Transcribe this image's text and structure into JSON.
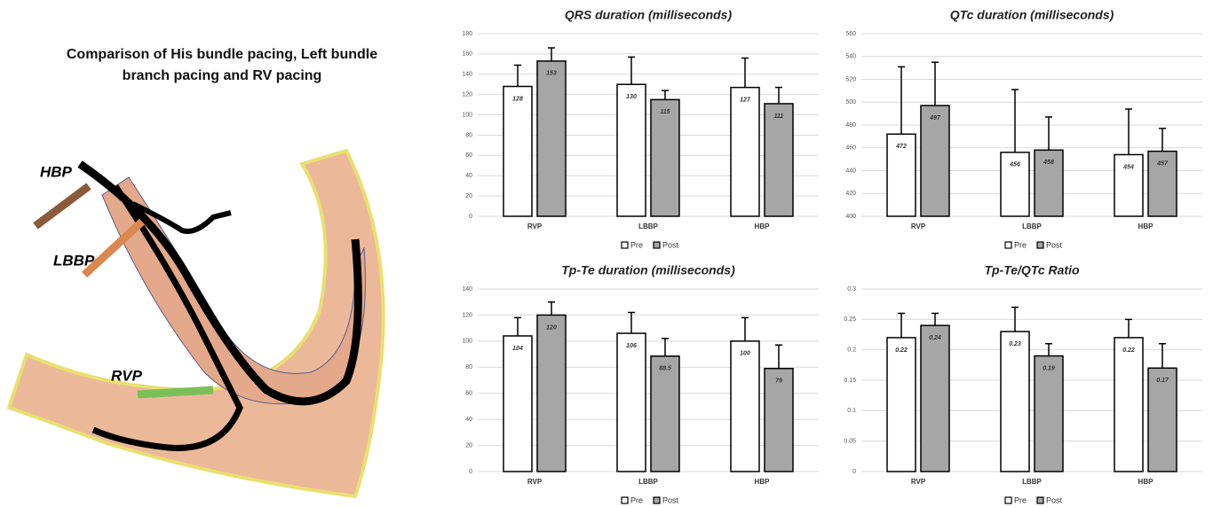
{
  "illustration": {
    "title": "Comparison of His bundle pacing, Left bundle branch pacing and RV pacing",
    "labels": [
      "HBP",
      "LBBP",
      "RVP"
    ]
  },
  "chart_data": [
    {
      "type": "bar",
      "title": "QRS duration (milliseconds)",
      "categories": [
        "RVP",
        "LBBP",
        "HBP"
      ],
      "series": [
        {
          "name": "Pre",
          "color": "#ffffff",
          "values": [
            128,
            130,
            127
          ],
          "errors": [
            21,
            27,
            29
          ]
        },
        {
          "name": "Post",
          "color": "#a6a6a6",
          "values": [
            153,
            115,
            111
          ],
          "errors": [
            13,
            9,
            16
          ]
        }
      ],
      "ylim": [
        0,
        180
      ],
      "yticks": [
        0,
        20,
        40,
        60,
        80,
        100,
        120,
        140,
        160,
        180
      ],
      "grid": true
    },
    {
      "type": "bar",
      "title": "QTc duration (milliseconds)",
      "categories": [
        "RVP",
        "LBBP",
        "HBP"
      ],
      "series": [
        {
          "name": "Pre",
          "color": "#ffffff",
          "values": [
            472,
            456,
            454
          ],
          "errors": [
            59,
            55,
            40
          ]
        },
        {
          "name": "Post",
          "color": "#a6a6a6",
          "values": [
            497,
            458,
            457
          ],
          "errors": [
            38,
            29,
            20
          ]
        }
      ],
      "ylim": [
        400,
        560
      ],
      "yticks": [
        400,
        420,
        440,
        460,
        480,
        500,
        520,
        540,
        560
      ],
      "grid": true
    },
    {
      "type": "bar",
      "title": "Tp-Te duration (milliseconds)",
      "categories": [
        "RVP",
        "LBBP",
        "HBP"
      ],
      "series": [
        {
          "name": "Pre",
          "color": "#ffffff",
          "values": [
            104,
            106,
            100
          ],
          "errors": [
            14,
            16,
            18
          ]
        },
        {
          "name": "Post",
          "color": "#a6a6a6",
          "values": [
            120,
            88.5,
            79
          ],
          "errors": [
            10,
            13.5,
            18
          ]
        }
      ],
      "ylim": [
        0,
        140
      ],
      "yticks": [
        0,
        20,
        40,
        60,
        80,
        100,
        120,
        140
      ],
      "grid": true
    },
    {
      "type": "bar",
      "title": "Tp-Te/QTc Ratio",
      "categories": [
        "RVP",
        "LBBP",
        "HBP"
      ],
      "series": [
        {
          "name": "Pre",
          "color": "#ffffff",
          "values": [
            0.22,
            0.23,
            0.22
          ],
          "errors": [
            0.04,
            0.04,
            0.03
          ]
        },
        {
          "name": "Post",
          "color": "#a6a6a6",
          "values": [
            0.24,
            0.19,
            0.17
          ],
          "errors": [
            0.02,
            0.02,
            0.04
          ]
        }
      ],
      "ylim": [
        0,
        0.3
      ],
      "yticks": [
        0,
        0.05,
        0.1,
        0.15,
        0.2,
        0.25,
        0.3
      ],
      "grid": true
    }
  ]
}
